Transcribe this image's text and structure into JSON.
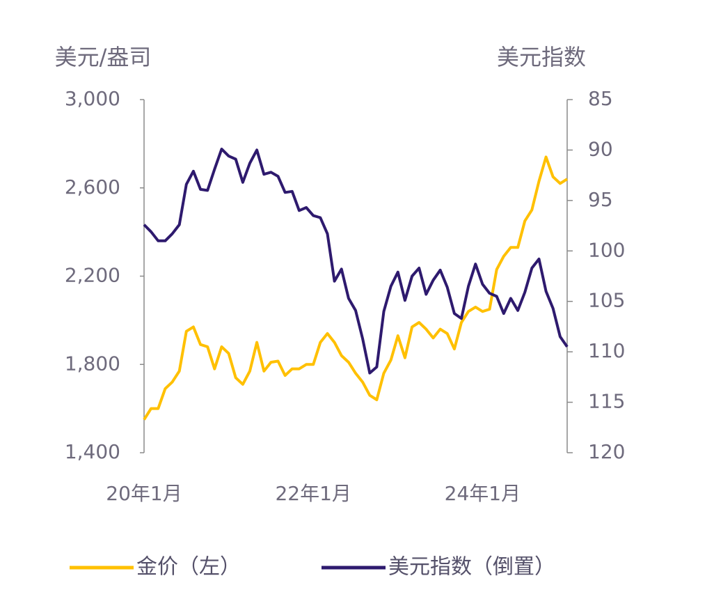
{
  "chart_data": {
    "type": "line",
    "y_label": "美元/盎司",
    "y2_label": "美元指数",
    "categories": [
      "20年1月",
      null,
      null,
      null,
      null,
      null,
      null,
      null,
      null,
      null,
      null,
      null,
      null,
      null,
      null,
      null,
      null,
      null,
      null,
      null,
      null,
      null,
      null,
      null,
      "22年1月",
      null,
      null,
      null,
      null,
      null,
      null,
      null,
      null,
      null,
      null,
      null,
      null,
      null,
      null,
      null,
      null,
      null,
      null,
      null,
      null,
      null,
      null,
      null,
      "24年1月",
      null,
      null,
      null,
      null,
      null,
      null,
      null,
      null,
      null,
      null,
      null,
      null
    ],
    "ylim": [
      1400,
      3000
    ],
    "yticks": [
      {
        "value": 1400,
        "label": "1,400"
      },
      {
        "value": 1800,
        "label": "1,800"
      },
      {
        "value": 2200,
        "label": "2,200"
      },
      {
        "value": 2600,
        "label": "2,600"
      },
      {
        "value": 3000,
        "label": "3,000"
      }
    ],
    "y2lim": [
      120,
      85
    ],
    "y2ticks": [
      85,
      90,
      95,
      100,
      105,
      110,
      115,
      120
    ],
    "series": [
      {
        "name": "金价（左）",
        "color": "#ffc000",
        "values": [
          1550,
          1600,
          1600,
          1690,
          1720,
          1770,
          1950,
          1970,
          1890,
          1880,
          1780,
          1880,
          1850,
          1740,
          1710,
          1770,
          1900,
          1770,
          1810,
          1815,
          1750,
          1780,
          1780,
          1800,
          1800,
          1900,
          1940,
          1900,
          1840,
          1810,
          1760,
          1720,
          1660,
          1640,
          1760,
          1820,
          1930,
          1830,
          1970,
          1990,
          1960,
          1920,
          1960,
          1940,
          1870,
          1990,
          2040,
          2060,
          2040,
          2050,
          2230,
          2290,
          2330,
          2330,
          2450,
          2500,
          2630,
          2740,
          2650,
          2620,
          2640
        ]
      },
      {
        "name": "美元指数（倒置）",
        "color": "#2e1a6e",
        "axis": "y2",
        "values": [
          97.4,
          98.1,
          99,
          99,
          98.3,
          97.4,
          93.4,
          92.1,
          93.9,
          94,
          91.9,
          89.9,
          90.6,
          90.9,
          93.2,
          91.3,
          90,
          92.4,
          92.2,
          92.6,
          94.2,
          94.1,
          96,
          95.7,
          96.5,
          96.7,
          98.3,
          103,
          101.8,
          104.7,
          105.9,
          108.7,
          112.1,
          111.5,
          106,
          103.5,
          102.1,
          104.9,
          102.5,
          101.7,
          104.3,
          102.9,
          101.9,
          103.6,
          106.2,
          106.7,
          103.5,
          101.3,
          103.3,
          104.2,
          104.5,
          106.2,
          104.7,
          105.9,
          104.1,
          101.7,
          100.8,
          104,
          105.7,
          108.5,
          109.5
        ]
      }
    ]
  }
}
